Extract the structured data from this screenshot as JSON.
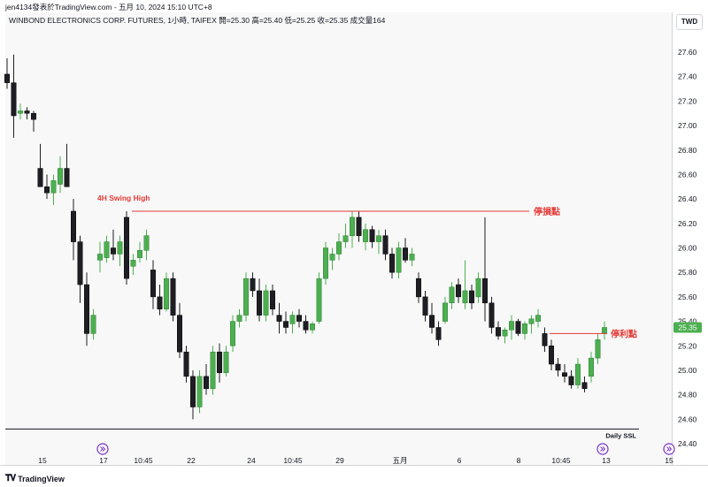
{
  "header": {
    "text": "jen4134發表於TradingView.com - 五月 10, 2024 15:10 UTC+8"
  },
  "currency": "TWD",
  "footer": {
    "logo_icon": "tradingview-logo-icon",
    "label": "TradingView"
  },
  "chart_data": {
    "type": "candlestick",
    "title": "WINBOND ELECTRONICS CORP. FUTURES, 1小時, TAIFEX",
    "ohlc_label": "開=25.30 高=25.40 低=25.25 收=25.35 成交量164",
    "ylim": [
      24.4,
      27.8
    ],
    "y_ticks": [
      24.4,
      24.6,
      24.8,
      25.0,
      25.2,
      25.4,
      25.6,
      25.8,
      26.0,
      26.2,
      26.4,
      26.6,
      26.8,
      27.0,
      27.2,
      27.4,
      27.6
    ],
    "x_ticks": [
      "15",
      "17",
      "10:45",
      "22",
      "24",
      "10:45",
      "29",
      "五月",
      "6",
      "8",
      "10:45",
      "13",
      "15"
    ],
    "last_price": "25.35",
    "candles": [
      [
        27.42,
        27.55,
        27.3,
        27.35
      ],
      [
        27.35,
        27.58,
        26.9,
        27.08
      ],
      [
        27.1,
        27.18,
        27.05,
        27.12
      ],
      [
        27.12,
        27.15,
        27.05,
        27.1
      ],
      [
        27.1,
        27.12,
        26.95,
        27.05
      ],
      [
        26.65,
        26.85,
        26.5,
        26.5
      ],
      [
        26.5,
        26.6,
        26.4,
        26.45
      ],
      [
        26.45,
        26.6,
        26.35,
        26.55
      ],
      [
        26.52,
        26.75,
        26.45,
        26.65
      ],
      [
        26.65,
        26.85,
        26.5,
        26.5
      ],
      [
        26.3,
        26.4,
        25.9,
        26.05
      ],
      [
        26.05,
        26.1,
        25.55,
        25.7
      ],
      [
        25.7,
        25.8,
        25.2,
        25.3
      ],
      [
        25.3,
        25.5,
        25.25,
        25.45
      ],
      [
        25.9,
        26.05,
        25.8,
        25.95
      ],
      [
        25.92,
        26.1,
        25.88,
        26.05
      ],
      [
        26.0,
        26.15,
        25.9,
        25.95
      ],
      [
        25.95,
        26.1,
        25.85,
        26.05
      ],
      [
        26.25,
        26.3,
        25.7,
        25.75
      ],
      [
        25.85,
        25.95,
        25.78,
        25.9
      ],
      [
        25.92,
        26.05,
        25.88,
        25.98
      ],
      [
        25.98,
        26.15,
        25.9,
        26.1
      ],
      [
        25.82,
        25.9,
        25.5,
        25.6
      ],
      [
        25.6,
        25.7,
        25.45,
        25.5
      ],
      [
        25.5,
        25.8,
        25.48,
        25.75
      ],
      [
        25.75,
        25.8,
        25.4,
        25.45
      ],
      [
        25.45,
        25.55,
        25.1,
        25.15
      ],
      [
        25.15,
        25.2,
        24.9,
        24.95
      ],
      [
        24.95,
        25.0,
        24.6,
        24.7
      ],
      [
        24.7,
        25.0,
        24.65,
        24.95
      ],
      [
        24.95,
        25.05,
        24.8,
        24.85
      ],
      [
        24.85,
        25.2,
        24.8,
        25.15
      ],
      [
        25.15,
        25.22,
        24.9,
        24.98
      ],
      [
        24.98,
        25.2,
        24.95,
        25.15
      ],
      [
        25.2,
        25.45,
        25.15,
        25.4
      ],
      [
        25.4,
        25.5,
        25.35,
        25.45
      ],
      [
        25.45,
        25.8,
        25.4,
        25.75
      ],
      [
        25.75,
        25.8,
        25.6,
        25.65
      ],
      [
        25.65,
        25.75,
        25.4,
        25.45
      ],
      [
        25.45,
        25.7,
        25.4,
        25.65
      ],
      [
        25.65,
        25.7,
        25.45,
        25.5
      ],
      [
        25.45,
        25.55,
        25.3,
        25.4
      ],
      [
        25.4,
        25.48,
        25.3,
        25.35
      ],
      [
        25.38,
        25.48,
        25.3,
        25.45
      ],
      [
        25.45,
        25.5,
        25.35,
        25.4
      ],
      [
        25.4,
        25.45,
        25.3,
        25.33
      ],
      [
        25.33,
        25.4,
        25.3,
        25.38
      ],
      [
        25.4,
        25.8,
        25.38,
        25.75
      ],
      [
        25.75,
        26.05,
        25.7,
        26.0
      ],
      [
        25.9,
        26.0,
        25.82,
        25.95
      ],
      [
        25.95,
        26.12,
        25.9,
        26.05
      ],
      [
        26.05,
        26.2,
        26.0,
        26.1
      ],
      [
        26.1,
        26.3,
        26.0,
        26.25
      ],
      [
        26.25,
        26.3,
        26.05,
        26.1
      ],
      [
        26.05,
        26.2,
        25.98,
        26.15
      ],
      [
        26.15,
        26.18,
        26.0,
        26.05
      ],
      [
        26.05,
        26.15,
        25.95,
        26.1
      ],
      [
        26.1,
        26.15,
        25.9,
        25.95
      ],
      [
        25.95,
        26.0,
        25.75,
        25.8
      ],
      [
        25.8,
        26.05,
        25.75,
        26.0
      ],
      [
        26.0,
        26.08,
        25.88,
        25.9
      ],
      [
        25.9,
        26.0,
        25.85,
        25.95
      ],
      [
        25.75,
        25.8,
        25.55,
        25.6
      ],
      [
        25.6,
        25.65,
        25.4,
        25.45
      ],
      [
        25.45,
        25.55,
        25.3,
        25.35
      ],
      [
        25.35,
        25.4,
        25.2,
        25.25
      ],
      [
        25.4,
        25.6,
        25.38,
        25.55
      ],
      [
        25.55,
        25.72,
        25.5,
        25.68
      ],
      [
        25.7,
        25.75,
        25.55,
        25.6
      ],
      [
        25.55,
        25.9,
        25.5,
        25.65
      ],
      [
        25.65,
        25.7,
        25.5,
        25.55
      ],
      [
        25.6,
        25.8,
        25.55,
        25.75
      ],
      [
        25.75,
        26.25,
        25.4,
        25.55
      ],
      [
        25.55,
        25.6,
        25.3,
        25.35
      ],
      [
        25.35,
        25.4,
        25.25,
        25.28
      ],
      [
        25.28,
        25.35,
        25.22,
        25.33
      ],
      [
        25.33,
        25.45,
        25.25,
        25.4
      ],
      [
        25.4,
        25.42,
        25.28,
        25.3
      ],
      [
        25.3,
        25.4,
        25.25,
        25.38
      ],
      [
        25.38,
        25.45,
        25.3,
        25.42
      ],
      [
        25.4,
        25.5,
        25.35,
        25.45
      ],
      [
        25.3,
        25.35,
        25.15,
        25.2
      ],
      [
        25.2,
        25.25,
        25.0,
        25.05
      ],
      [
        25.05,
        25.1,
        24.95,
        25.0
      ],
      [
        24.98,
        25.05,
        24.9,
        24.95
      ],
      [
        24.95,
        25.0,
        24.85,
        24.88
      ],
      [
        24.88,
        25.1,
        24.85,
        25.05
      ],
      [
        24.9,
        24.95,
        24.82,
        24.85
      ],
      [
        24.95,
        25.15,
        24.9,
        25.1
      ],
      [
        25.1,
        25.3,
        25.05,
        25.25
      ],
      [
        25.3,
        25.4,
        25.25,
        25.35
      ]
    ],
    "annotations": {
      "swing_high_label": "4H Swing High",
      "stop_loss_label": "停損點",
      "stop_loss_price": 26.3,
      "take_profit_label": "停利點",
      "take_profit_price": 25.3,
      "daily_ssl_label": "Daily SSL",
      "daily_ssl_price": 24.52
    },
    "colors": {
      "up": "#4caf50",
      "down": "#1e1e24",
      "annotation": "#e53935",
      "last_price_bg": "#4caf50"
    }
  }
}
